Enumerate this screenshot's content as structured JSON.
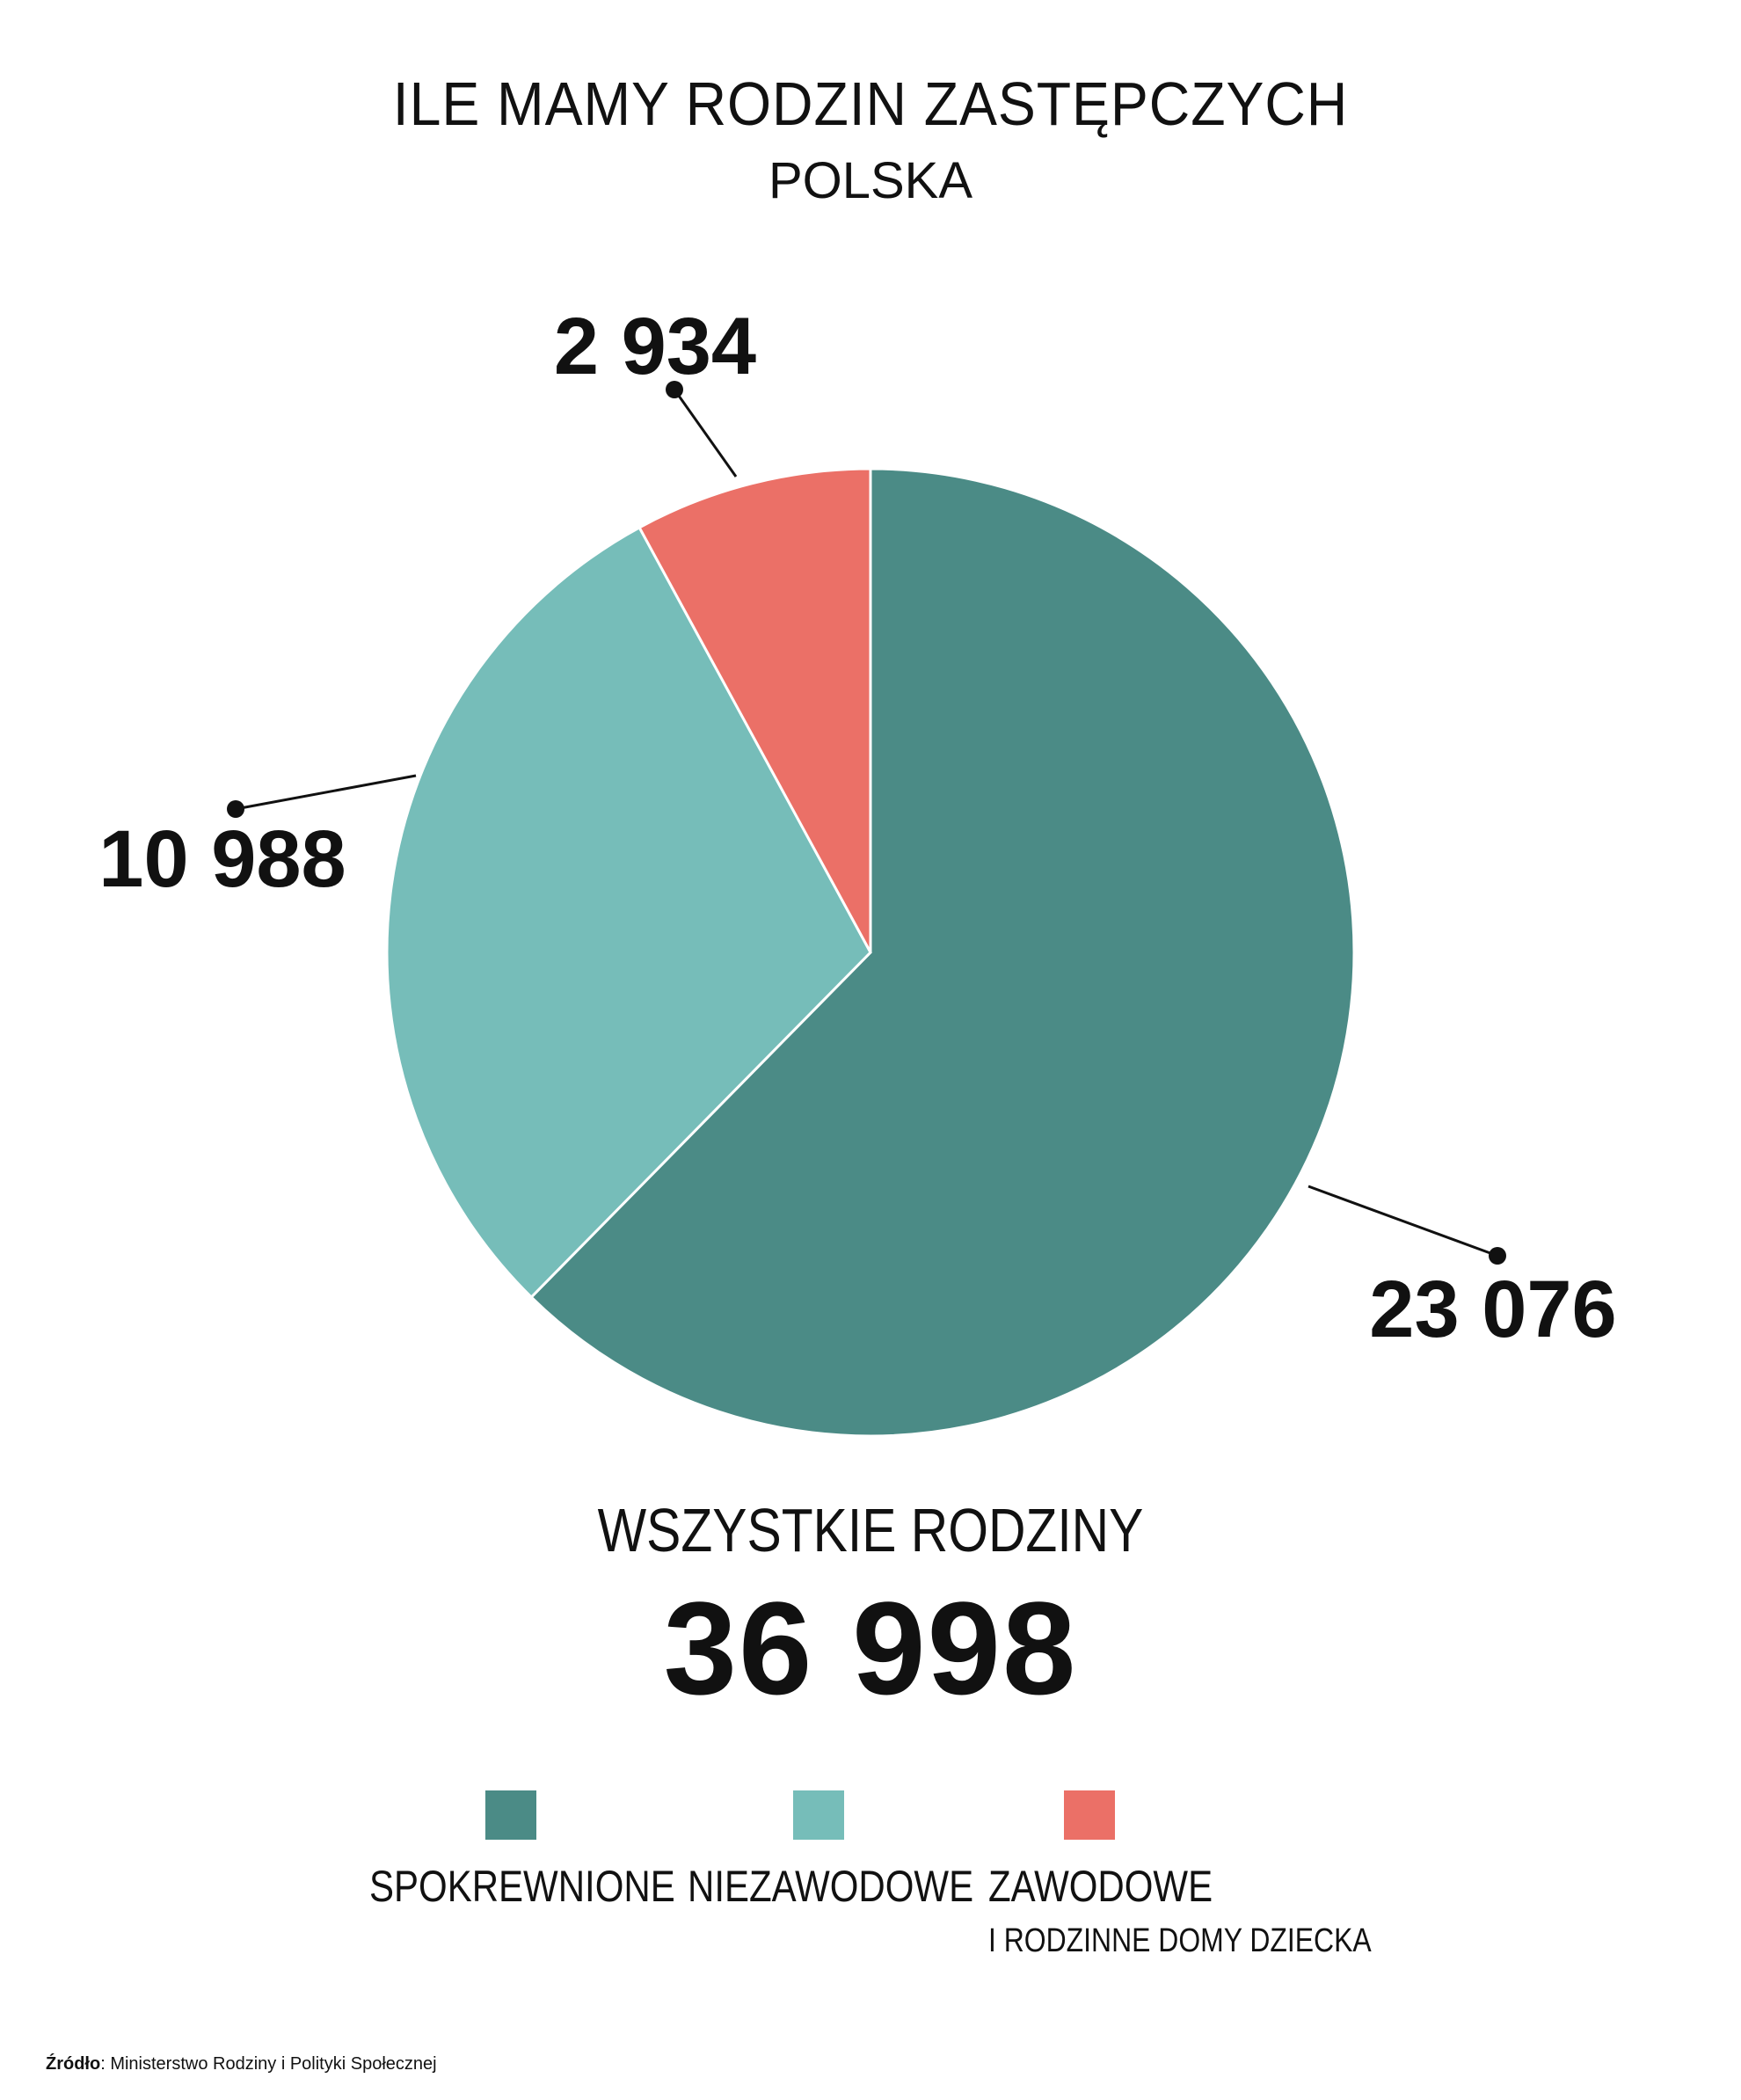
{
  "chart_data": {
    "type": "pie",
    "title": "ILE MAMY RODZIN ZASTĘPCZYCH",
    "subtitle": "POLSKA",
    "categories": [
      "SPOKREWNIONE",
      "NIEZAWODOWE",
      "ZAWODOWE"
    ],
    "values": [
      23076,
      10988,
      2934
    ],
    "value_labels": [
      "23 076",
      "10 988",
      "2 934"
    ],
    "colors": [
      "#4b8b86",
      "#76bdb9",
      "#eb7067"
    ],
    "start": "12 o'clock, clockwise",
    "total_label": "WSZYSTKIE RODZINY",
    "total_value": "36 998",
    "legend": [
      {
        "label": "SPOKREWNIONE",
        "sublabel": "",
        "color": "#4b8b86"
      },
      {
        "label": "NIEZAWODOWE",
        "sublabel": "",
        "color": "#76bdb9"
      },
      {
        "label": "ZAWODOWE",
        "sublabel": "I RODZINNE DOMY DZIECKA",
        "color": "#eb7067"
      }
    ],
    "legend_position": "bottom"
  },
  "source": {
    "label": "Źródło",
    "text": ": Ministerstwo Rodziny i Polityki Społecznej"
  }
}
